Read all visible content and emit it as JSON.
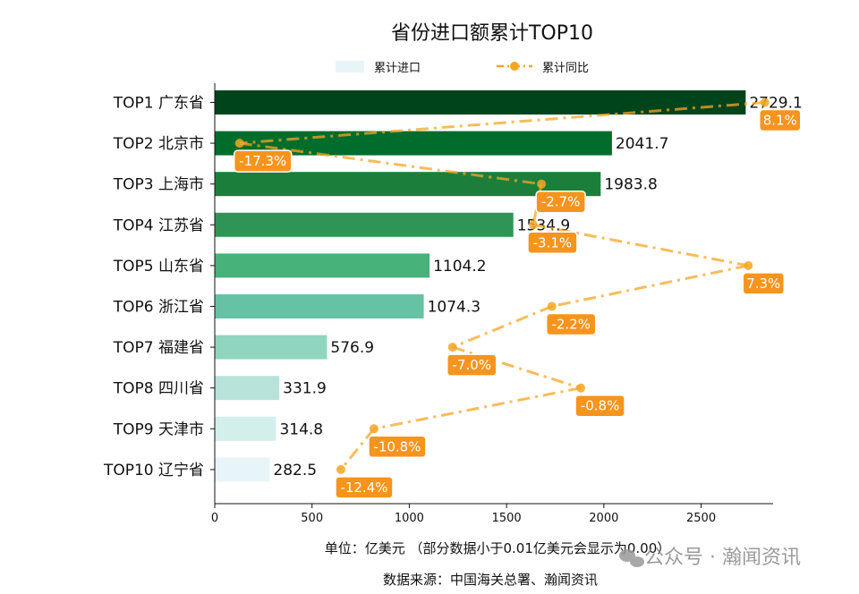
{
  "chart_data": {
    "type": "bar",
    "orientation": "horizontal",
    "title": "省份进口额累计TOP10",
    "categories": [
      "TOP1 广东省",
      "TOP2 北京市",
      "TOP3 上海市",
      "TOP4 江苏省",
      "TOP5 山东省",
      "TOP6 浙江省",
      "TOP7 福建省",
      "TOP8 四川省",
      "TOP9 天津市",
      "TOP10 辽宁省"
    ],
    "series": [
      {
        "name": "累计进口",
        "type": "bar",
        "values": [
          2729.1,
          2041.7,
          1983.8,
          1534.9,
          1104.2,
          1074.3,
          576.9,
          331.9,
          314.8,
          282.5
        ],
        "value_labels": [
          "2729.1",
          "2041.7",
          "1983.8",
          "1534.9",
          "1104.2",
          "1074.3",
          "576.9",
          "331.9",
          "314.8",
          "282.5"
        ],
        "colors": [
          "#00441b",
          "#006d2c",
          "#1b7f3b",
          "#2f9556",
          "#47b27a",
          "#66c2a4",
          "#8fd5c0",
          "#b7e3db",
          "#d3efeb",
          "#e8f5f8"
        ]
      },
      {
        "name": "累计同比",
        "type": "line",
        "values": [
          8.1,
          -17.3,
          -2.7,
          -3.1,
          7.3,
          -2.2,
          -7.0,
          -0.8,
          -10.8,
          -12.4
        ],
        "value_labels": [
          "8.1%",
          "-17.3%",
          "-2.7%",
          "-3.1%",
          "7.3%",
          "-2.2%",
          "-7.0%",
          "-0.8%",
          "-10.8%",
          "-12.4%"
        ],
        "range": [
          -18.5,
          8.5
        ],
        "color": "#f5a623",
        "label_color": "#f7941d"
      }
    ],
    "xaxis": {
      "ticks": [
        "0",
        "500",
        "1000",
        "1500",
        "2000",
        "2500"
      ],
      "tick_values": [
        0,
        500,
        1000,
        1500,
        2000,
        2500
      ],
      "range": [
        0,
        2870
      ]
    },
    "xlabel": "单位：亿美元   （部分数据小于0.01亿美元会显示为0.00）",
    "legend": {
      "placement": "top-center",
      "labels": [
        "累计进口",
        "累计同比"
      ]
    },
    "grid": false
  },
  "source_text": "数据来源：中国海关总署、瀚闻资讯",
  "watermark": "公众号 · 瀚闻资讯"
}
